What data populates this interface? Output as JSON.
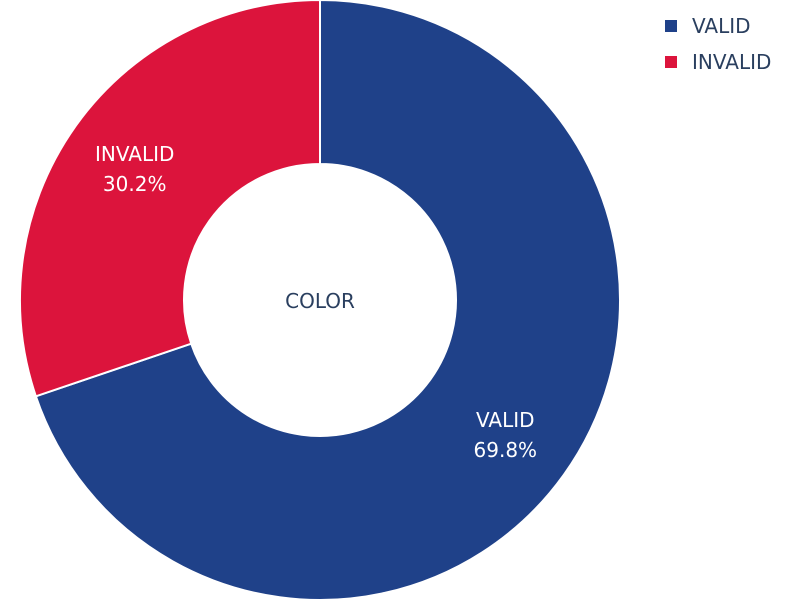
{
  "chart_data": {
    "type": "pie",
    "hole": true,
    "center_label": "COLOR",
    "slices": [
      {
        "label": "VALID",
        "value": 69.8,
        "display": "69.8%",
        "color": "#1f4189"
      },
      {
        "label": "INVALID",
        "value": 30.2,
        "display": "30.2%",
        "color": "#dc143c"
      }
    ],
    "legend_position": "top-right",
    "text_color": "#2a3f5f"
  }
}
